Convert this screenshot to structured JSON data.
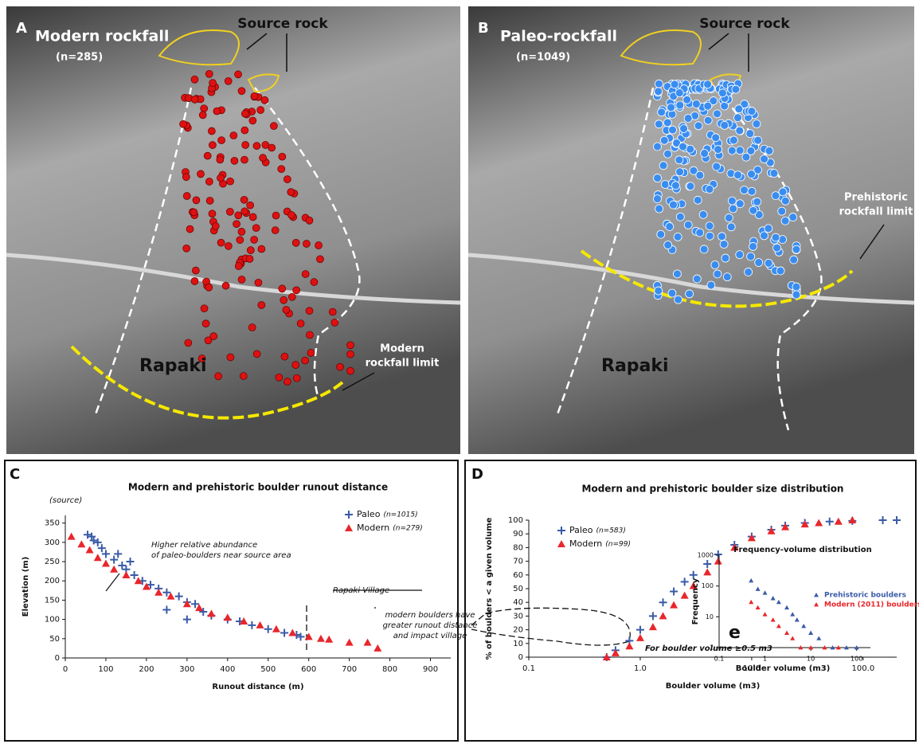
{
  "photos": [
    {
      "label": "A",
      "title": "Modern rockfall",
      "count": "(n=285)",
      "source": "Source rock",
      "place": "Rapaki",
      "limit_1": "Modern",
      "limit_2": "rockfall limit"
    },
    {
      "label": "B",
      "title": "Paleo-rockfall",
      "count": "(n=1049)",
      "source": "Source rock",
      "place": "Rapaki",
      "limit_1": "Prehistoric",
      "limit_2": "rockfall limit"
    }
  ],
  "chart_data": [
    {
      "type": "scatter",
      "panel": "C",
      "title": "Modern and prehistoric boulder runout distance",
      "x_label": "Runout distance (m)",
      "y_label": "Elevation (m)",
      "annotations": [
        "(source)",
        "Higher relative abundance",
        "of paleo-boulders near source area",
        "Rapaki Village",
        "modern boulders have",
        "greater runout distance",
        "and impact village"
      ],
      "xlim": [
        0,
        950
      ],
      "ylim": [
        0,
        370
      ],
      "xticks": [
        0,
        100,
        200,
        300,
        400,
        500,
        600,
        700,
        800,
        900
      ],
      "yticks": [
        0,
        50,
        100,
        150,
        200,
        250,
        300,
        350
      ],
      "series": [
        {
          "name": "Paleo",
          "count": "(n=1015)",
          "color": "#3a5ba8",
          "marker": "plus",
          "x": [
            55,
            65,
            70,
            80,
            90,
            100,
            120,
            140,
            150,
            170,
            190,
            210,
            230,
            250,
            280,
            300,
            320,
            340,
            360,
            400,
            430,
            460,
            500,
            540,
            570,
            580,
            300,
            250,
            130,
            160
          ],
          "values": [
            320,
            315,
            305,
            300,
            285,
            270,
            255,
            240,
            230,
            215,
            200,
            190,
            180,
            170,
            160,
            145,
            140,
            120,
            110,
            100,
            95,
            85,
            75,
            65,
            60,
            55,
            100,
            125,
            270,
            250
          ]
        },
        {
          "name": "Modern",
          "count": "(n=279)",
          "color": "#e8262b",
          "marker": "triangle",
          "x": [
            15,
            40,
            60,
            80,
            100,
            120,
            150,
            180,
            200,
            230,
            260,
            300,
            330,
            360,
            400,
            440,
            480,
            520,
            560,
            600,
            630,
            650,
            700,
            745,
            770
          ],
          "values": [
            315,
            295,
            280,
            260,
            245,
            230,
            215,
            200,
            185,
            170,
            160,
            140,
            130,
            115,
            105,
            95,
            85,
            75,
            65,
            55,
            50,
            48,
            40,
            40,
            25
          ]
        }
      ]
    },
    {
      "type": "scatter",
      "panel": "D",
      "title": "Modern and prehistoric boulder size distribution",
      "x_label": "Boulder volume (m3)",
      "y_label": "% of boulders < a given volume",
      "annotations": [
        "For boulder volume ≥0.5 m3"
      ],
      "log_x": true,
      "xlim": [
        0.1,
        200
      ],
      "ylim": [
        0,
        100
      ],
      "xticks": [
        0.1,
        {
          "value": 1,
          "label": "1.0"
        },
        {
          "value": 10,
          "label": "10.0"
        },
        {
          "value": 100,
          "label": "100.0"
        }
      ],
      "yticks": [
        0,
        10,
        20,
        30,
        40,
        50,
        60,
        70,
        80,
        90,
        100
      ],
      "series": [
        {
          "name": "Paleo",
          "count": "(n=583)",
          "color": "#3a5ba8",
          "marker": "plus",
          "x": [
            0.5,
            0.6,
            0.8,
            1,
            1.3,
            1.6,
            2,
            2.5,
            3,
            4,
            5,
            7,
            10,
            15,
            20,
            30,
            50,
            80,
            150,
            200
          ],
          "values": [
            0,
            5,
            12,
            20,
            30,
            40,
            48,
            55,
            60,
            68,
            75,
            82,
            88,
            93,
            96,
            98,
            99,
            99.5,
            100,
            100
          ]
        },
        {
          "name": "Modern",
          "count": "(n=99)",
          "color": "#e8262b",
          "marker": "triangle",
          "x": [
            0.5,
            0.6,
            0.8,
            1,
            1.3,
            1.6,
            2,
            2.5,
            3,
            4,
            5,
            7,
            10,
            15,
            20,
            30,
            40,
            60,
            80
          ],
          "values": [
            0,
            3,
            8,
            14,
            22,
            30,
            38,
            45,
            52,
            62,
            70,
            80,
            87,
            92,
            95,
            97,
            98,
            99,
            100
          ]
        }
      ]
    },
    {
      "type": "scatter",
      "panel": "e",
      "title": "Frequency-volume distribution",
      "x_label": "Boulder volume (m3)",
      "y_label": "Frequency",
      "log_x": true,
      "log_y": true,
      "xlim": [
        0.1,
        200
      ],
      "ylim": [
        1,
        1000
      ],
      "xticks": [
        0.1,
        1,
        10,
        100
      ],
      "yticks": [
        1,
        10,
        100,
        1000
      ],
      "series": [
        {
          "name": "Prehistoric boulders",
          "color": "#3a5ba8",
          "marker": "triangle",
          "x": [
            0.5,
            0.7,
            1,
            1.5,
            2,
            3,
            4,
            5,
            7,
            10,
            15,
            30,
            60,
            100
          ],
          "values": [
            150,
            80,
            60,
            40,
            30,
            20,
            12,
            8,
            5,
            3,
            2,
            1,
            1,
            1
          ]
        },
        {
          "name": "Modern (2011) boulders",
          "color": "#e8262b",
          "marker": "triangle",
          "x": [
            0.5,
            0.7,
            1,
            1.5,
            2,
            3,
            4,
            6,
            10,
            20,
            40
          ],
          "values": [
            30,
            20,
            12,
            8,
            5,
            3,
            2,
            1,
            1,
            1,
            1
          ]
        }
      ]
    }
  ]
}
